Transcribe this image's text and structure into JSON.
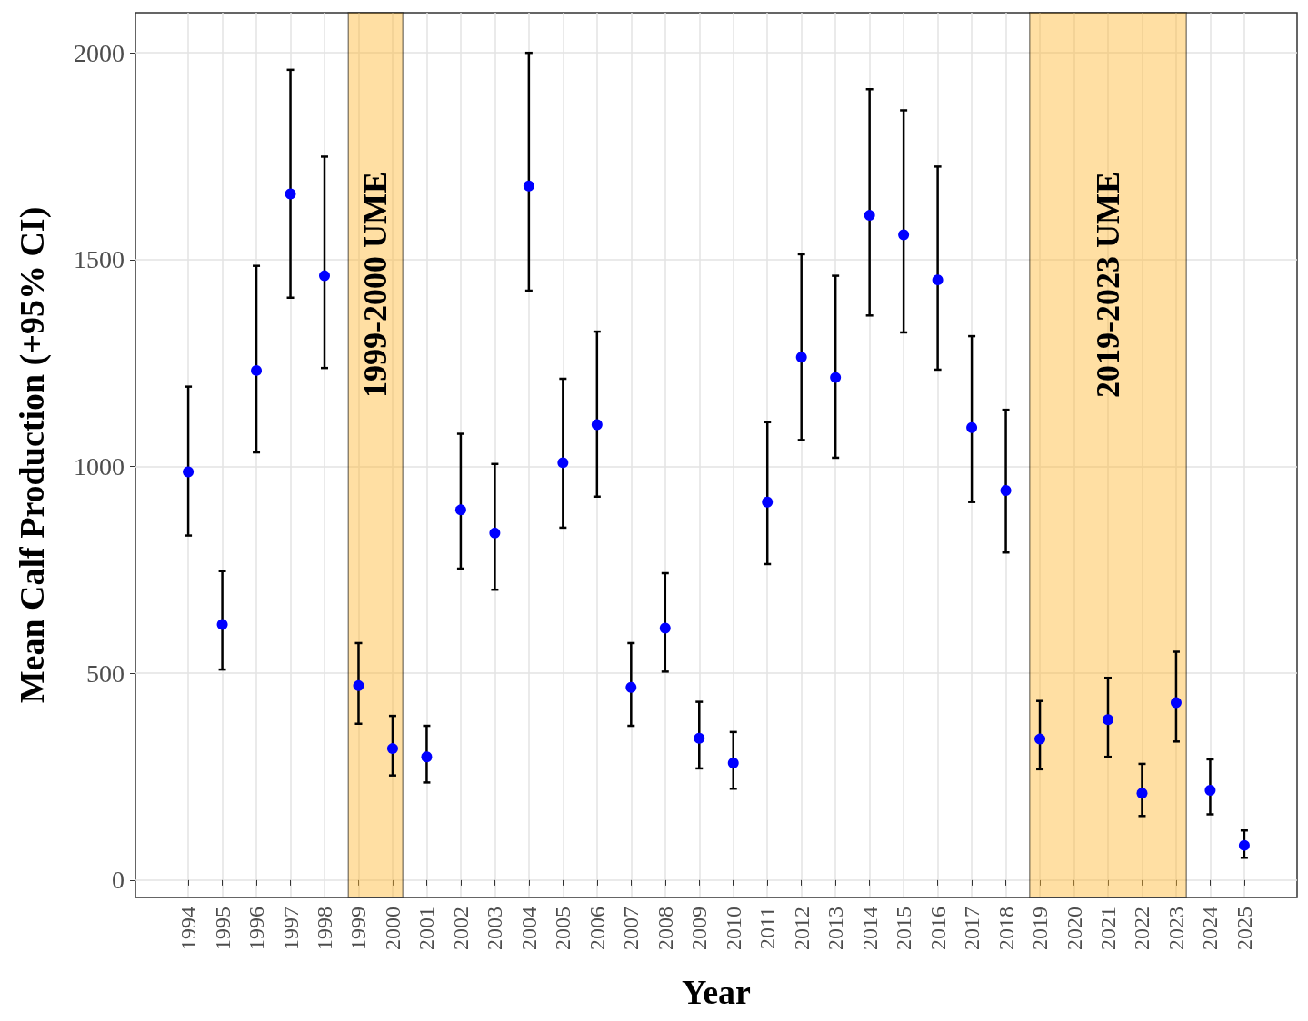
{
  "chart_data": {
    "type": "scatter",
    "xlabel": "Year",
    "ylabel": "Mean Calf Production (+95% CI)",
    "x": [
      1994,
      1995,
      1996,
      1997,
      1998,
      1999,
      2000,
      2001,
      2002,
      2003,
      2004,
      2005,
      2006,
      2007,
      2008,
      2009,
      2010,
      2011,
      2012,
      2013,
      2014,
      2015,
      2016,
      2017,
      2018,
      2019,
      2021,
      2022,
      2023,
      2024,
      2025
    ],
    "series": [
      {
        "color": "#0000ff",
        "values": [
          987,
          618,
          1232,
          1659,
          1461,
          470,
          318,
          298,
          895,
          839,
          1678,
          1009,
          1101,
          466,
          609,
          343,
          283,
          914,
          1264,
          1215,
          1607,
          1560,
          1451,
          1094,
          942,
          341,
          388,
          210,
          429,
          217,
          84
        ],
        "errors": [
          [
            833,
            1193
          ],
          [
            509,
            747
          ],
          [
            1034,
            1485
          ],
          [
            1408,
            1959
          ],
          [
            1238,
            1749
          ],
          [
            378,
            573
          ],
          [
            253,
            397
          ],
          [
            236,
            373
          ],
          [
            753,
            1079
          ],
          [
            702,
            1006
          ],
          [
            1425,
            2000
          ],
          [
            852,
            1212
          ],
          [
            927,
            1326
          ],
          [
            373,
            573
          ],
          [
            504,
            742
          ],
          [
            270,
            431
          ],
          [
            221,
            358
          ],
          [
            764,
            1107
          ],
          [
            1064,
            1513
          ],
          [
            1021,
            1461
          ],
          [
            1365,
            1912
          ],
          [
            1324,
            1861
          ],
          [
            1234,
            1725
          ],
          [
            914,
            1315
          ],
          [
            792,
            1137
          ],
          [
            268,
            433
          ],
          [
            298,
            489
          ],
          [
            155,
            281
          ],
          [
            335,
            552
          ],
          [
            159,
            292
          ],
          [
            54,
            120
          ]
        ]
      }
    ],
    "xlim": [
      1992.45,
      2026.55
    ],
    "xticks": [
      1994,
      1995,
      1996,
      1997,
      1998,
      1999,
      2000,
      2001,
      2002,
      2003,
      2004,
      2005,
      2006,
      2007,
      2008,
      2009,
      2010,
      2011,
      2012,
      2013,
      2014,
      2015,
      2016,
      2017,
      2018,
      2019,
      2020,
      2021,
      2022,
      2023,
      2024,
      2025
    ],
    "ylim": [
      -42,
      2097
    ],
    "yticks": [
      0,
      500,
      1000,
      1500,
      2000
    ],
    "bands": [
      {
        "axis": "x",
        "from": 1998.7,
        "to": 2000.3,
        "label": "1999-2000 UME",
        "color": "#ffb733"
      },
      {
        "axis": "x",
        "from": 2018.7,
        "to": 2023.3,
        "label": "2019-2023 UME",
        "color": "#ffb733"
      }
    ],
    "grid": true,
    "marker": "circle"
  }
}
